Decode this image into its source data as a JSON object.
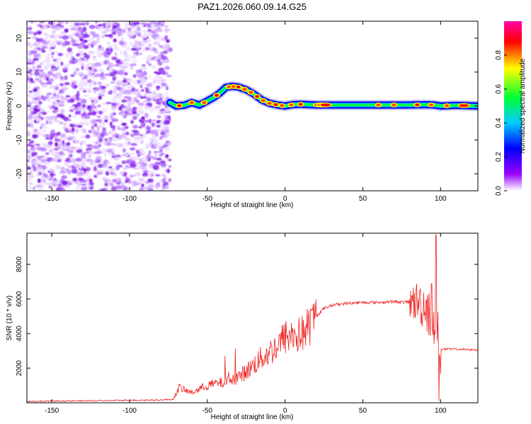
{
  "title": "PAZ1.2026.060.09.14.G25",
  "chart_data": [
    {
      "type": "heatmap",
      "xlabel": "Height of straight line (km)",
      "ylabel": "Frequency (Hz)",
      "xlim": [
        -166,
        124
      ],
      "ylim": [
        -25,
        25
      ],
      "xticks": [
        -150,
        -100,
        -50,
        0,
        50,
        100
      ],
      "yticks": [
        -20,
        -10,
        0,
        10,
        20
      ],
      "noise_region_x": [
        -166,
        -74
      ],
      "ridge": {
        "x": [
          -74,
          -70,
          -65,
          -60,
          -55,
          -50,
          -46,
          -42,
          -38,
          -34,
          -30,
          -25,
          -20,
          -15,
          -10,
          -5,
          0,
          5,
          10,
          20,
          40,
          60,
          80,
          90,
          96,
          100,
          110,
          124
        ],
        "freq": [
          1.0,
          0.0,
          0.2,
          1.0,
          0.3,
          1.5,
          2.5,
          3.8,
          5.5,
          5.8,
          5.6,
          4.8,
          3.5,
          1.8,
          0.8,
          0.3,
          0.0,
          0.4,
          0.5,
          0.3,
          0.3,
          0.3,
          0.3,
          0.4,
          0.3,
          0.0,
          0.2,
          0.0
        ]
      },
      "colorbar": {
        "label": "Normalized spectral amplitude",
        "ticks": [
          0.0,
          0.2,
          0.4,
          0.6,
          0.8
        ],
        "tick_labels": [
          "0.0",
          "0.2",
          "0.4",
          "0.6",
          "0.8"
        ],
        "range": [
          0,
          1
        ],
        "colors": [
          "#ffffff",
          "#9900ff",
          "#0000ff",
          "#00ccff",
          "#00ff33",
          "#ffff00",
          "#ff0000",
          "#ff00aa"
        ]
      }
    },
    {
      "type": "line",
      "xlabel": "Height of straight line (km)",
      "ylabel": "SNR (10 * v/v)",
      "xlim": [
        -166,
        124
      ],
      "ylim": [
        0,
        9800
      ],
      "xticks": [
        -150,
        -100,
        -50,
        0,
        50,
        100
      ],
      "yticks": [
        2000,
        4000,
        6000,
        8000
      ],
      "series": [
        {
          "name": "SNR",
          "color": "#ee2222",
          "x": [
            -166,
            -150,
            -120,
            -100,
            -80,
            -72,
            -68,
            -64,
            -60,
            -55,
            -50,
            -45,
            -40,
            -35,
            -30,
            -25,
            -20,
            -15,
            -10,
            -5,
            0,
            5,
            10,
            15,
            20,
            25,
            30,
            40,
            50,
            60,
            70,
            80,
            85,
            90,
            95,
            97,
            98,
            99,
            100,
            110,
            124
          ],
          "y": [
            80,
            100,
            120,
            150,
            160,
            200,
            900,
            700,
            600,
            800,
            1000,
            1100,
            1150,
            1300,
            1500,
            1800,
            2200,
            2600,
            2900,
            3300,
            3800,
            3900,
            3900,
            4400,
            5000,
            5450,
            5650,
            5750,
            5800,
            5800,
            5850,
            5800,
            5850,
            5600,
            5300,
            5000,
            4000,
            1800,
            3100,
            3100,
            3050
          ]
        }
      ]
    }
  ]
}
